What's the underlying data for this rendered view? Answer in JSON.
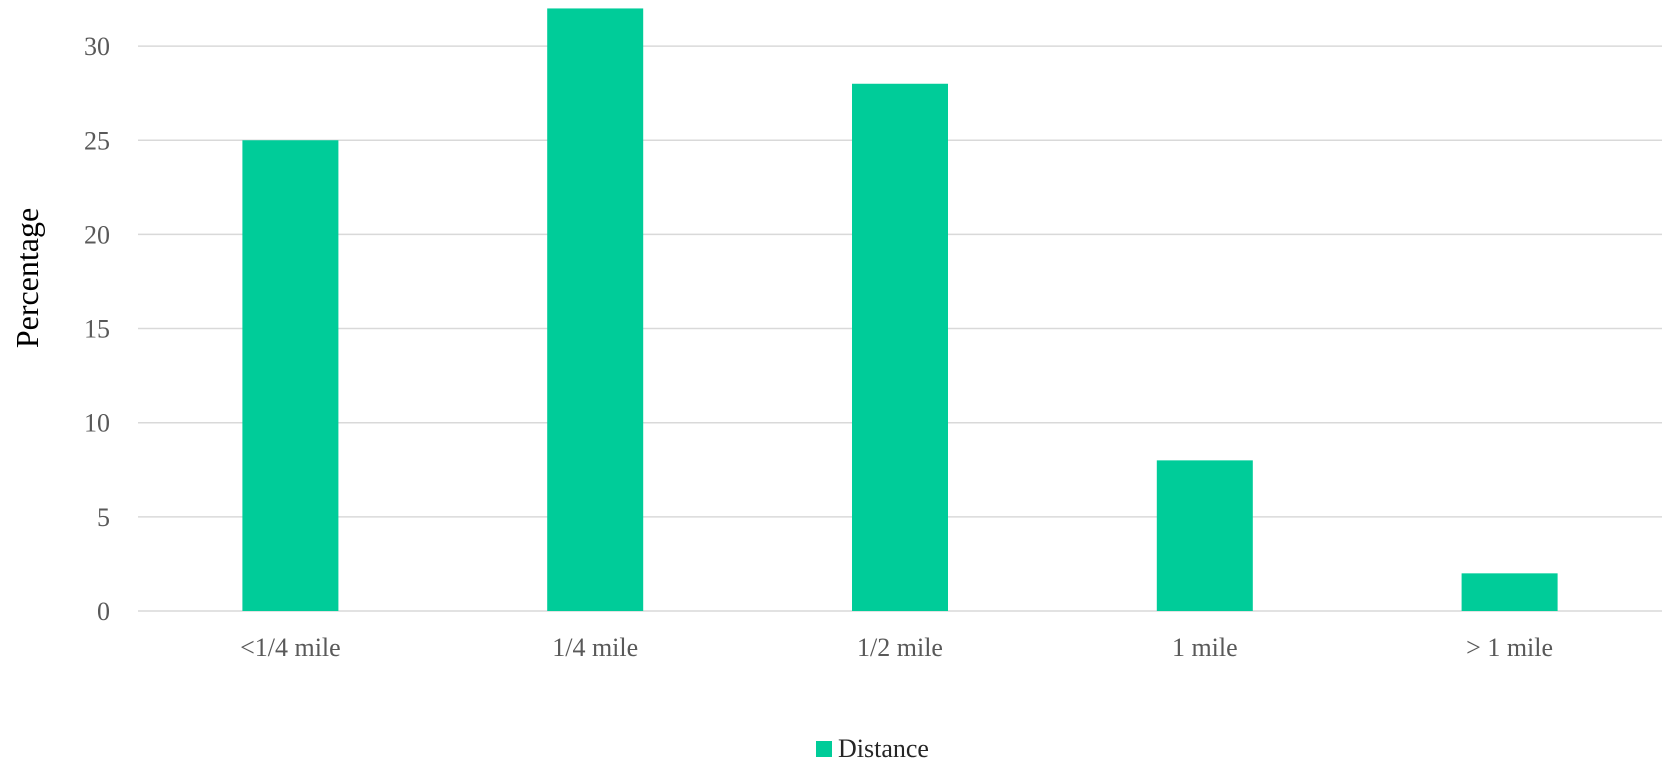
{
  "chart_data": {
    "type": "bar",
    "categories": [
      "<1/4 mile",
      "1/4 mile",
      "1/2 mile",
      "1 mile",
      "> 1 mile"
    ],
    "series": [
      {
        "name": "Distance",
        "values": [
          25,
          32,
          28,
          8,
          2
        ],
        "color": "#00CC99"
      }
    ],
    "title": "",
    "xlabel": "",
    "ylabel": "Percentage",
    "ylim": [
      0,
      32
    ],
    "yticks": [
      0,
      5,
      10,
      15,
      20,
      25,
      30
    ],
    "grid": true,
    "legend_position": "bottom-center"
  },
  "colors": {
    "bar": "#00CC99",
    "grid": "#d9d9d9",
    "tick_text": "#595959",
    "axis_title": "#000000"
  }
}
